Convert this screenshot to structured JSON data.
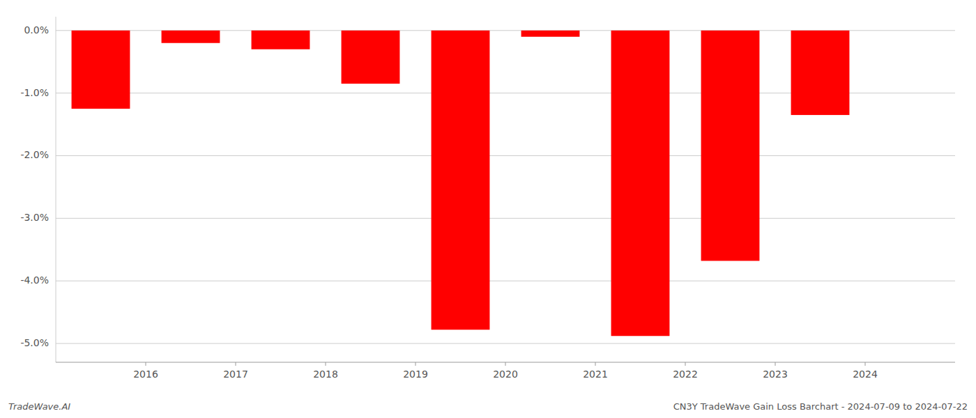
{
  "chart_data": {
    "type": "bar",
    "x": [
      2015.5,
      2016.5,
      2017.5,
      2018.5,
      2019.5,
      2020.5,
      2021.5,
      2022.5,
      2023.5
    ],
    "values": [
      -1.25,
      -0.2,
      -0.3,
      -0.85,
      -4.78,
      -0.1,
      -4.88,
      -3.68,
      -1.35
    ],
    "color": "#ff0000",
    "xlim": [
      2015.0,
      2025.0
    ],
    "xticks": [
      2016,
      2017,
      2018,
      2019,
      2020,
      2021,
      2022,
      2023,
      2024
    ],
    "ylim": [
      -5.3,
      0.22
    ],
    "yticks": [
      {
        "value": 0.0,
        "label": "0.0%"
      },
      {
        "value": -1.0,
        "label": "-1.0%"
      },
      {
        "value": -2.0,
        "label": "-2.0%"
      },
      {
        "value": -3.0,
        "label": "-3.0%"
      },
      {
        "value": -4.0,
        "label": "-4.0%"
      },
      {
        "value": -5.0,
        "label": "-5.0%"
      }
    ],
    "grid": true,
    "annotations": [
      "TradeWave.AI",
      "CN3Y TradeWave Gain Loss Barchart - 2024-07-09 to 2024-07-22"
    ]
  }
}
